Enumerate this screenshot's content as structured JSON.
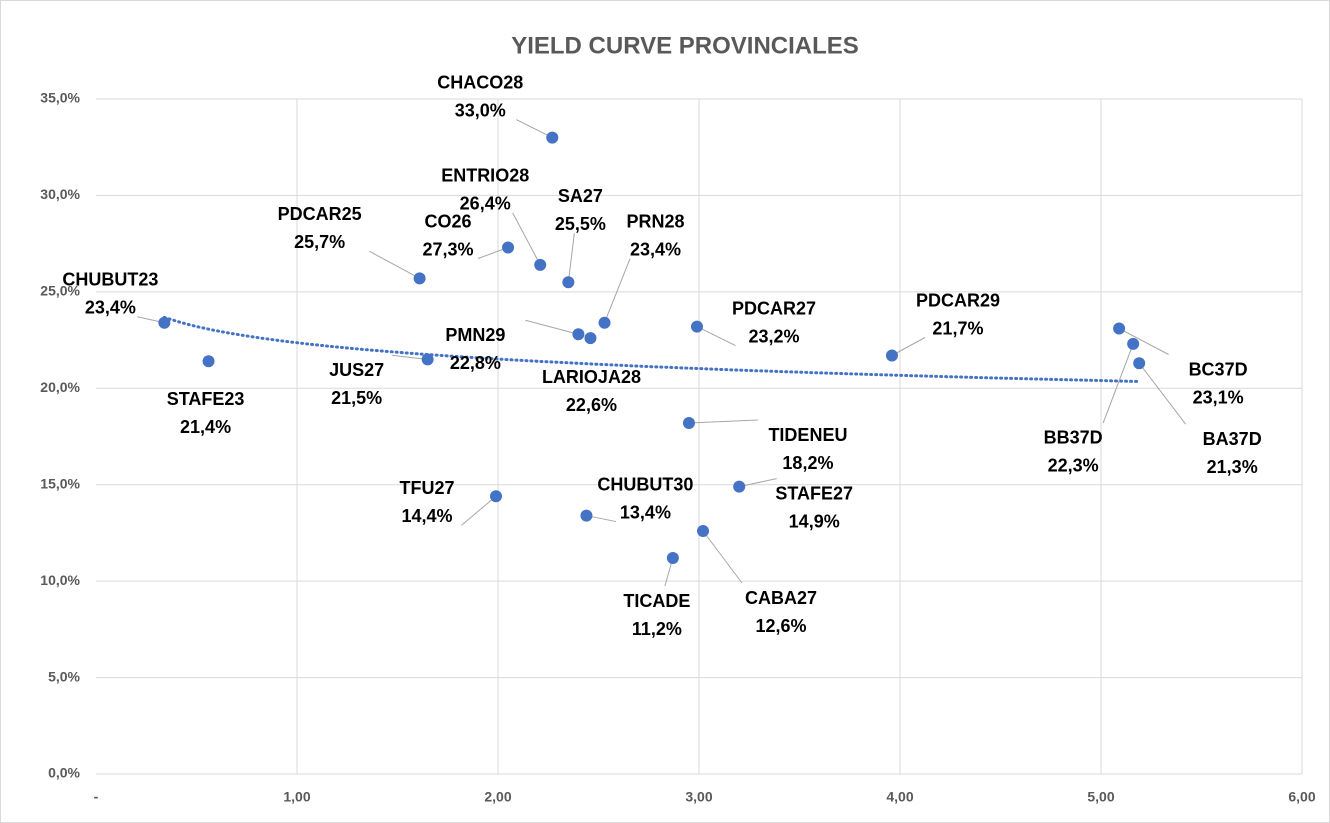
{
  "chart_data": {
    "type": "scatter",
    "title": "YIELD CURVE PROVINCIALES",
    "series": [
      {
        "color": "#4472c4",
        "trendline": "logarithmic",
        "trendline_color": "#4472c4",
        "names": [
          "CHUBUT23",
          "STAFE23",
          "PDCAR25",
          "JUS27",
          "CO26",
          "ENTRIO28",
          "CHACO28",
          "SA27",
          "PMN29",
          "LARIOJA28",
          "PRN28",
          "TFU27",
          "CHUBUT30",
          "TIDENEU",
          "PDCAR27",
          "TICADE",
          "CABA27",
          "STAFE27",
          "PDCAR29",
          "BC37D",
          "BB37D",
          "BA37D"
        ],
        "x": [
          0.34,
          0.56,
          1.61,
          1.65,
          2.05,
          2.21,
          2.27,
          2.35,
          2.4,
          2.46,
          2.53,
          1.99,
          2.44,
          2.95,
          2.99,
          2.87,
          3.02,
          3.2,
          3.96,
          5.09,
          5.16,
          5.19
        ],
        "values": [
          23.4,
          21.4,
          25.7,
          21.5,
          27.3,
          26.4,
          33.0,
          25.5,
          22.8,
          22.6,
          23.4,
          14.4,
          13.4,
          18.2,
          23.2,
          11.2,
          12.6,
          14.9,
          21.7,
          23.1,
          22.3,
          21.3
        ],
        "value_labels": [
          "23,4%",
          "21,4%",
          "25,7%",
          "21,5%",
          "27,3%",
          "26,4%",
          "33,0%",
          "25,5%",
          "22,8%",
          "22,6%",
          "23,4%",
          "14,4%",
          "13,4%",
          "18,2%",
          "23,2%",
          "11,2%",
          "12,6%",
          "14,9%",
          "21,7%",
          "23,1%",
          "22,3%",
          "21,3%"
        ]
      }
    ],
    "xlim": [
      0,
      6
    ],
    "xticks": [
      {
        "value": 0,
        "label": "-"
      },
      {
        "value": 1,
        "label": "1,00"
      },
      {
        "value": 2,
        "label": "2,00"
      },
      {
        "value": 3,
        "label": "3,00"
      },
      {
        "value": 4,
        "label": "4,00"
      },
      {
        "value": 5,
        "label": "5,00"
      },
      {
        "value": 6,
        "label": "6,00"
      }
    ],
    "ylim": [
      0,
      35
    ],
    "yticks": [
      {
        "value": 0,
        "label": "0,0%"
      },
      {
        "value": 5,
        "label": "5,0%"
      },
      {
        "value": 10,
        "label": "10,0%"
      },
      {
        "value": 15,
        "label": "15,0%"
      },
      {
        "value": 20,
        "label": "20,0%"
      },
      {
        "value": 25,
        "label": "25,0%"
      },
      {
        "value": 30,
        "label": "30,0%"
      },
      {
        "value": 35,
        "label": "35,0%"
      }
    ],
    "grid": true
  }
}
